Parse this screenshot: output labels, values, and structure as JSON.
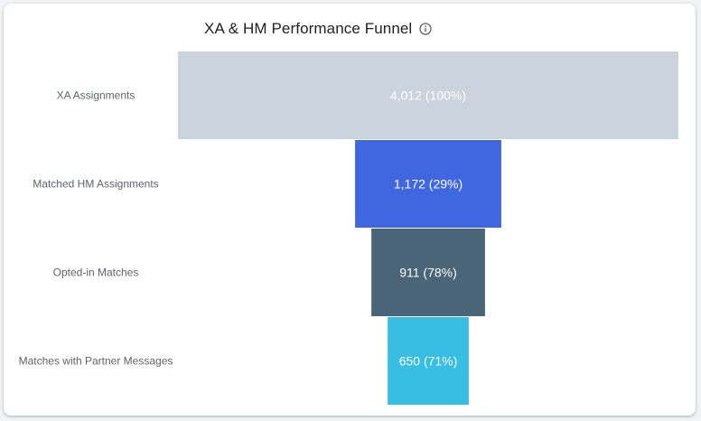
{
  "chart_data": {
    "type": "funnel",
    "title": "XA & HM Performance Funnel",
    "title_icon": "info-icon",
    "max_value": 4012,
    "stages": [
      {
        "label": "XA Assignments",
        "value": 4012,
        "value_text": "4,012 (100%)",
        "color": "#cbd3dd"
      },
      {
        "label": "Matched HM Assignments",
        "value": 1172,
        "value_text": "1,172 (29%)",
        "color": "#4066e0"
      },
      {
        "label": "Opted-in Matches",
        "value": 911,
        "value_text": "911 (78%)",
        "color": "#4a6478"
      },
      {
        "label": "Matches with Partner Messages",
        "value": 650,
        "value_text": "650 (71%)",
        "color": "#38bde3"
      }
    ]
  }
}
